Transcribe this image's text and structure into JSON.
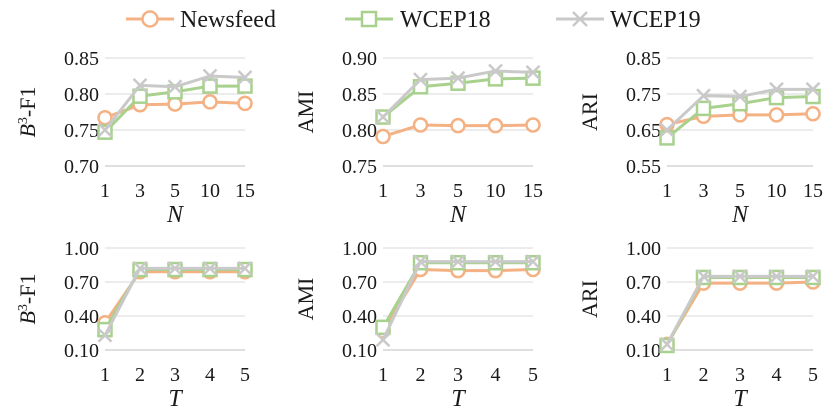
{
  "legend": {
    "items": [
      {
        "name": "Newsfeed",
        "color": "#f4b183",
        "marker": "circle"
      },
      {
        "name": "WCEP18",
        "color": "#a9d18e",
        "marker": "square"
      },
      {
        "name": "WCEP19",
        "color": "#c9c9c9",
        "marker": "x"
      }
    ]
  },
  "chart_data": [
    {
      "type": "line",
      "title": "",
      "xlabel": "N",
      "ylabel_main": "B",
      "ylabel_sup": "3",
      "ylabel_rest": "-F1",
      "categories": [
        "1",
        "3",
        "5",
        "10",
        "15"
      ],
      "ylim": [
        0.7,
        0.85
      ],
      "yticks": [
        "0.70",
        "0.75",
        "0.80",
        "0.85"
      ],
      "series": [
        {
          "name": "Newsfeed",
          "values": [
            0.767,
            0.785,
            0.786,
            0.789,
            0.787
          ]
        },
        {
          "name": "WCEP18",
          "values": [
            0.747,
            0.797,
            0.803,
            0.811,
            0.811
          ]
        },
        {
          "name": "WCEP19",
          "values": [
            0.75,
            0.812,
            0.81,
            0.825,
            0.823
          ]
        }
      ]
    },
    {
      "type": "line",
      "title": "",
      "xlabel": "N",
      "ylabel_main": "AMI",
      "ylabel_sup": "",
      "ylabel_rest": "",
      "categories": [
        "1",
        "3",
        "5",
        "10",
        "15"
      ],
      "ylim": [
        0.75,
        0.9
      ],
      "yticks": [
        "0.75",
        "0.80",
        "0.85",
        "0.90"
      ],
      "series": [
        {
          "name": "Newsfeed",
          "values": [
            0.791,
            0.807,
            0.806,
            0.806,
            0.807
          ]
        },
        {
          "name": "WCEP18",
          "values": [
            0.818,
            0.86,
            0.865,
            0.871,
            0.872
          ]
        },
        {
          "name": "WCEP19",
          "values": [
            0.818,
            0.87,
            0.872,
            0.882,
            0.88
          ]
        }
      ]
    },
    {
      "type": "line",
      "title": "",
      "xlabel": "N",
      "ylabel_main": "ARI",
      "ylabel_sup": "",
      "ylabel_rest": "",
      "categories": [
        "1",
        "3",
        "5",
        "10",
        "15"
      ],
      "ylim": [
        0.55,
        0.85
      ],
      "yticks": [
        "0.55",
        "0.65",
        "0.75",
        "0.85"
      ],
      "series": [
        {
          "name": "Newsfeed",
          "values": [
            0.665,
            0.688,
            0.692,
            0.692,
            0.695
          ]
        },
        {
          "name": "WCEP18",
          "values": [
            0.628,
            0.71,
            0.723,
            0.74,
            0.743
          ]
        },
        {
          "name": "WCEP19",
          "values": [
            0.65,
            0.745,
            0.743,
            0.763,
            0.763
          ]
        }
      ]
    },
    {
      "type": "line",
      "title": "",
      "xlabel": "T",
      "ylabel_main": "B",
      "ylabel_sup": "3",
      "ylabel_rest": "-F1",
      "categories": [
        "1",
        "2",
        "3",
        "4",
        "5"
      ],
      "ylim": [
        0.1,
        1.0
      ],
      "yticks": [
        "0.10",
        "0.40",
        "0.70",
        "1.00"
      ],
      "series": [
        {
          "name": "Newsfeed",
          "values": [
            0.34,
            0.79,
            0.79,
            0.79,
            0.79
          ]
        },
        {
          "name": "WCEP18",
          "values": [
            0.28,
            0.81,
            0.81,
            0.81,
            0.81
          ]
        },
        {
          "name": "WCEP19",
          "values": [
            0.23,
            0.82,
            0.82,
            0.82,
            0.82
          ]
        }
      ]
    },
    {
      "type": "line",
      "title": "",
      "xlabel": "T",
      "ylabel_main": "AMI",
      "ylabel_sup": "",
      "ylabel_rest": "",
      "categories": [
        "1",
        "2",
        "3",
        "4",
        "5"
      ],
      "ylim": [
        0.1,
        1.0
      ],
      "yticks": [
        "0.10",
        "0.40",
        "0.70",
        "1.00"
      ],
      "series": [
        {
          "name": "Newsfeed",
          "values": [
            0.27,
            0.81,
            0.8,
            0.8,
            0.81
          ]
        },
        {
          "name": "WCEP18",
          "values": [
            0.3,
            0.87,
            0.87,
            0.87,
            0.87
          ]
        },
        {
          "name": "WCEP19",
          "values": [
            0.19,
            0.88,
            0.88,
            0.88,
            0.88
          ]
        }
      ]
    },
    {
      "type": "line",
      "title": "",
      "xlabel": "T",
      "ylabel_main": "ARI",
      "ylabel_sup": "",
      "ylabel_rest": "",
      "categories": [
        "1",
        "2",
        "3",
        "4",
        "5"
      ],
      "ylim": [
        0.1,
        1.0
      ],
      "yticks": [
        "0.10",
        "0.40",
        "0.70",
        "1.00"
      ],
      "series": [
        {
          "name": "Newsfeed",
          "values": [
            0.15,
            0.69,
            0.69,
            0.69,
            0.7
          ]
        },
        {
          "name": "WCEP18",
          "values": [
            0.14,
            0.74,
            0.74,
            0.74,
            0.74
          ]
        },
        {
          "name": "WCEP19",
          "values": [
            0.15,
            0.75,
            0.75,
            0.75,
            0.75
          ]
        }
      ]
    }
  ]
}
